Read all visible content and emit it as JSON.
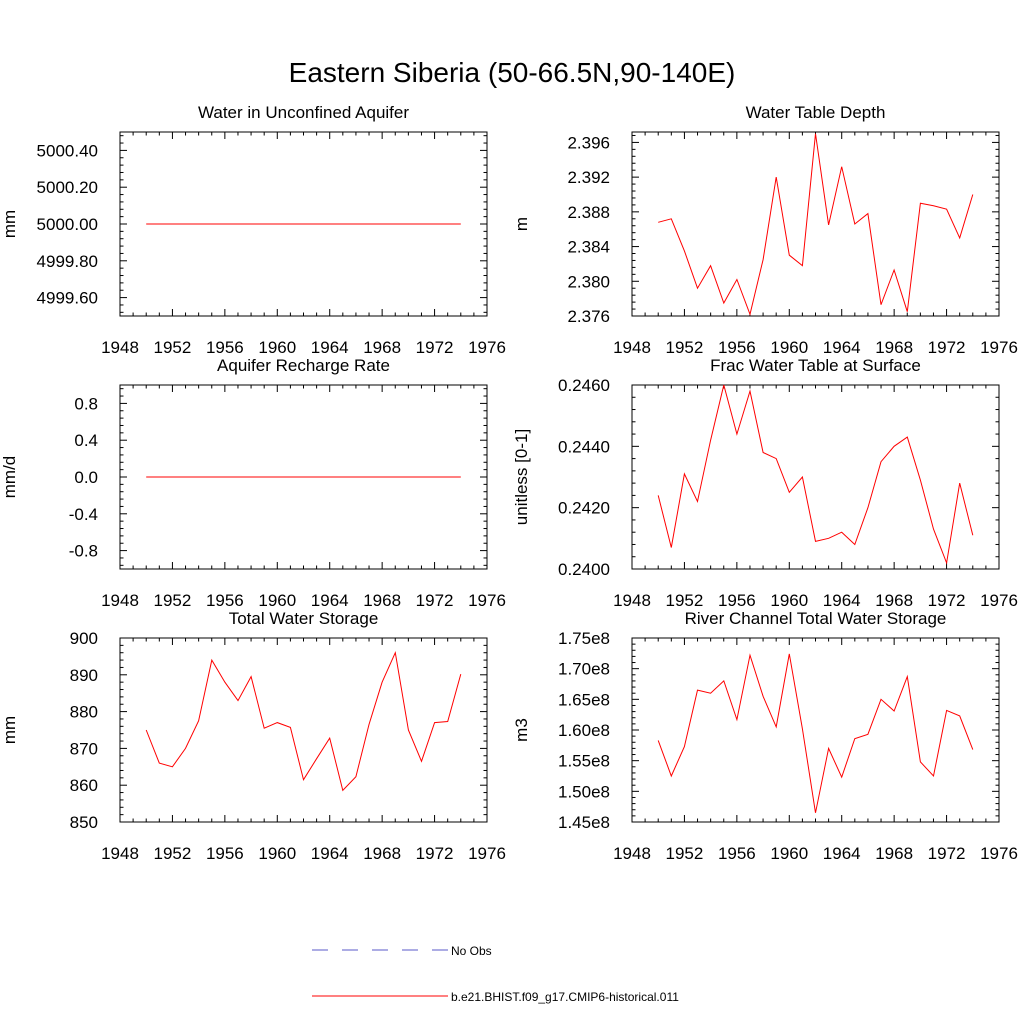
{
  "figure": {
    "title": "Eastern Siberia (50-66.5N,90-140E)"
  },
  "legend": {
    "items": [
      {
        "label": "No Obs",
        "color": "#5a5ac8",
        "dash": "dashed"
      },
      {
        "label": "b.e21.BHIST.f09_g17.CMIP6-historical.011",
        "color": "#ff0000",
        "dash": "solid"
      }
    ]
  },
  "chart_data": [
    {
      "type": "line",
      "title": "Water in Unconfined Aquifer",
      "ylabel": "mm",
      "xlim": [
        1948,
        1976
      ],
      "xticks": [
        1948,
        1952,
        1956,
        1960,
        1964,
        1968,
        1972,
        1976
      ],
      "ylim": [
        4999.5,
        5000.5
      ],
      "yticks": [
        4999.6,
        4999.8,
        5000.0,
        5000.2,
        5000.4
      ],
      "ytick_labels": [
        "4999.60",
        "4999.80",
        "5000.00",
        "5000.20",
        "5000.40"
      ],
      "series": [
        {
          "color": "#ff0000",
          "x": [
            1950,
            1951,
            1952,
            1953,
            1954,
            1955,
            1956,
            1957,
            1958,
            1959,
            1960,
            1961,
            1962,
            1963,
            1964,
            1965,
            1966,
            1967,
            1968,
            1969,
            1970,
            1971,
            1972,
            1973,
            1974
          ],
          "y": [
            5000,
            5000,
            5000,
            5000,
            5000,
            5000,
            5000,
            5000,
            5000,
            5000,
            5000,
            5000,
            5000,
            5000,
            5000,
            5000,
            5000,
            5000,
            5000,
            5000,
            5000,
            5000,
            5000,
            5000,
            5000
          ]
        }
      ]
    },
    {
      "type": "line",
      "title": "Water Table Depth",
      "ylabel": "m",
      "xlim": [
        1948,
        1976
      ],
      "xticks": [
        1948,
        1952,
        1956,
        1960,
        1964,
        1968,
        1972,
        1976
      ],
      "ylim": [
        2.376,
        2.3972
      ],
      "yticks": [
        2.376,
        2.38,
        2.384,
        2.388,
        2.392,
        2.396
      ],
      "ytick_labels": [
        "2.376",
        "2.380",
        "2.384",
        "2.388",
        "2.392",
        "2.396"
      ],
      "series": [
        {
          "color": "#ff0000",
          "x": [
            1950,
            1951,
            1952,
            1953,
            1954,
            1955,
            1956,
            1957,
            1958,
            1959,
            1960,
            1961,
            1962,
            1963,
            1964,
            1965,
            1966,
            1967,
            1968,
            1969,
            1970,
            1971,
            1972,
            1973,
            1974
          ],
          "y": [
            2.3868,
            2.3872,
            2.3835,
            2.3792,
            2.3818,
            2.3775,
            2.3802,
            2.3762,
            2.3825,
            2.392,
            2.383,
            2.3818,
            2.397,
            2.3865,
            2.3932,
            2.3866,
            2.3878,
            2.3773,
            2.3813,
            2.3765,
            2.389,
            2.3887,
            2.3883,
            2.385,
            2.39
          ]
        }
      ]
    },
    {
      "type": "line",
      "title": "Aquifer Recharge Rate",
      "ylabel": "mm/d",
      "xlim": [
        1948,
        1976
      ],
      "xticks": [
        1948,
        1952,
        1956,
        1960,
        1964,
        1968,
        1972,
        1976
      ],
      "ylim": [
        -1.0,
        1.0
      ],
      "yticks": [
        -0.8,
        -0.4,
        0.0,
        0.4,
        0.8
      ],
      "ytick_labels": [
        "-0.8",
        "-0.4",
        "0.0",
        "0.4",
        "0.8"
      ],
      "series": [
        {
          "color": "#ff0000",
          "x": [
            1950,
            1951,
            1952,
            1953,
            1954,
            1955,
            1956,
            1957,
            1958,
            1959,
            1960,
            1961,
            1962,
            1963,
            1964,
            1965,
            1966,
            1967,
            1968,
            1969,
            1970,
            1971,
            1972,
            1973,
            1974
          ],
          "y": [
            0,
            0,
            0,
            0,
            0,
            0,
            0,
            0,
            0,
            0,
            0,
            0,
            0,
            0,
            0,
            0,
            0,
            0,
            0,
            0,
            0,
            0,
            0,
            0,
            0
          ]
        }
      ]
    },
    {
      "type": "line",
      "title": "Frac Water Table at Surface",
      "ylabel": "unitless [0-1]",
      "xlim": [
        1948,
        1976
      ],
      "xticks": [
        1948,
        1952,
        1956,
        1960,
        1964,
        1968,
        1972,
        1976
      ],
      "ylim": [
        0.24,
        0.246
      ],
      "yticks": [
        0.24,
        0.242,
        0.244,
        0.246
      ],
      "ytick_labels": [
        "0.2400",
        "0.2420",
        "0.2440",
        "0.2460"
      ],
      "series": [
        {
          "color": "#ff0000",
          "x": [
            1950,
            1951,
            1952,
            1953,
            1954,
            1955,
            1956,
            1957,
            1958,
            1959,
            1960,
            1961,
            1962,
            1963,
            1964,
            1965,
            1966,
            1967,
            1968,
            1969,
            1970,
            1971,
            1972,
            1973,
            1974
          ],
          "y": [
            0.2424,
            0.2407,
            0.2431,
            0.2422,
            0.2442,
            0.246,
            0.2444,
            0.2458,
            0.2438,
            0.2436,
            0.2425,
            0.243,
            0.2409,
            0.241,
            0.2412,
            0.2408,
            0.242,
            0.2435,
            0.244,
            0.2443,
            0.2429,
            0.2413,
            0.2402,
            0.2428,
            0.2411
          ]
        }
      ]
    },
    {
      "type": "line",
      "title": "Total Water Storage",
      "ylabel": "mm",
      "xlim": [
        1948,
        1976
      ],
      "xticks": [
        1948,
        1952,
        1956,
        1960,
        1964,
        1968,
        1972,
        1976
      ],
      "ylim": [
        850,
        900
      ],
      "yticks": [
        850,
        860,
        870,
        880,
        890,
        900
      ],
      "ytick_labels": [
        "850",
        "860",
        "870",
        "880",
        "890",
        "900"
      ],
      "series": [
        {
          "color": "#ff0000",
          "x": [
            1950,
            1951,
            1952,
            1953,
            1954,
            1955,
            1956,
            1957,
            1958,
            1959,
            1960,
            1961,
            1962,
            1963,
            1964,
            1965,
            1966,
            1967,
            1968,
            1969,
            1970,
            1971,
            1972,
            1973,
            1974
          ],
          "y": [
            875,
            866,
            865,
            870,
            877.5,
            894,
            888,
            883,
            889.5,
            875.5,
            877,
            875.7,
            861.5,
            867.2,
            872.8,
            858.6,
            862.3,
            876.5,
            888,
            896,
            875,
            866.5,
            877,
            877.3,
            890.2
          ]
        }
      ]
    },
    {
      "type": "line",
      "title": "River Channel Total Water Storage",
      "ylabel": "m3",
      "xlim": [
        1948,
        1976
      ],
      "xticks": [
        1948,
        1952,
        1956,
        1960,
        1964,
        1968,
        1972,
        1976
      ],
      "ylim": [
        145000000,
        175000000
      ],
      "yticks": [
        145000000,
        150000000,
        155000000,
        160000000,
        165000000,
        170000000,
        175000000
      ],
      "ytick_labels": [
        "1.45e8",
        "1.50e8",
        "1.55e8",
        "1.60e8",
        "1.65e8",
        "1.70e8",
        "1.75e8"
      ],
      "series": [
        {
          "color": "#ff0000",
          "x": [
            1950,
            1951,
            1952,
            1953,
            1954,
            1955,
            1956,
            1957,
            1958,
            1959,
            1960,
            1961,
            1962,
            1963,
            1964,
            1965,
            1966,
            1967,
            1968,
            1969,
            1970,
            1971,
            1972,
            1973,
            1974
          ],
          "y": [
            158300000,
            152500000,
            157300000,
            166500000,
            166000000,
            168000000,
            161700000,
            172200000,
            165500000,
            160500000,
            172400000,
            160200000,
            146500000,
            157000000,
            152300000,
            158600000,
            159300000,
            165000000,
            163100000,
            168700000,
            154800000,
            152500000,
            163200000,
            162300000,
            156800000
          ]
        }
      ]
    }
  ]
}
